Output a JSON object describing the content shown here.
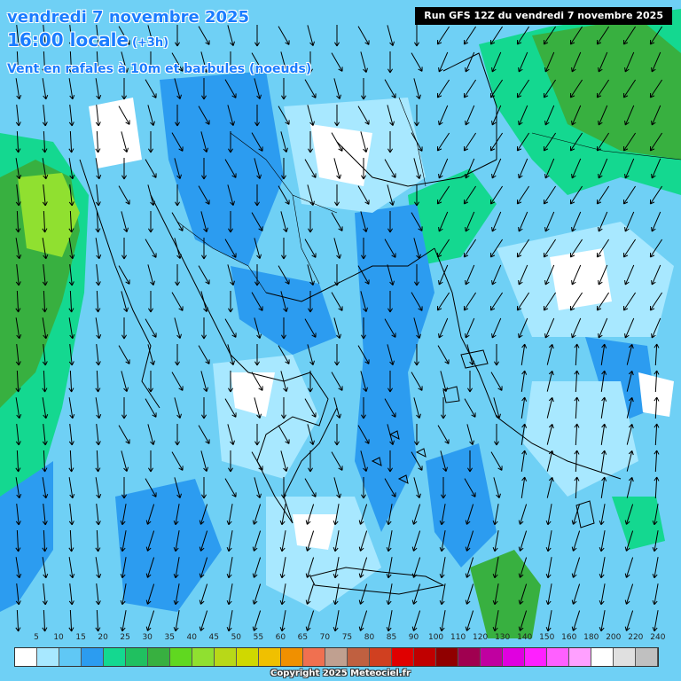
{
  "header": {
    "date_line": "vendredi 7 novembre 2025",
    "time_line": "16:00 locale",
    "offset": "(+3h)",
    "variable": "Vent en rafales à 10m et barbules (noeuds)"
  },
  "run_label": "Run GFS 12Z du vendredi 7 novembre 2025",
  "legend": {
    "labels": [
      "5",
      "10",
      "15",
      "20",
      "25",
      "30",
      "35",
      "40",
      "45",
      "50",
      "55",
      "60",
      "65",
      "70",
      "75",
      "80",
      "85",
      "90",
      "100",
      "110",
      "120",
      "130",
      "140",
      "150",
      "160",
      "180",
      "200",
      "220",
      "240"
    ],
    "colors": [
      "#ffffff",
      "#a8e8ff",
      "#60c8f5",
      "#2c9cf0",
      "#14d890",
      "#20c060",
      "#38b040",
      "#60d820",
      "#90e030",
      "#b8d818",
      "#d0d800",
      "#f0c000",
      "#f09000",
      "#f07050",
      "#c0a090",
      "#c06040",
      "#d04020",
      "#e00000",
      "#c00000",
      "#900000",
      "#a00050",
      "#c000a0",
      "#e000e0",
      "#ff20ff",
      "#ff60ff",
      "#ffa0ff",
      "#ffffff",
      "#e0e0e0",
      "#c0c0c0"
    ]
  },
  "map": {
    "background_color": "#6fd0f5",
    "field_colors": {
      "light": "#a8e8ff",
      "medium": "#2c9cf0",
      "green": "#14d890",
      "darkgreen": "#38b040",
      "lime": "#90e030",
      "white": "#ffffff"
    }
  },
  "copyright": "Copyright 2025 Meteociel.fr"
}
